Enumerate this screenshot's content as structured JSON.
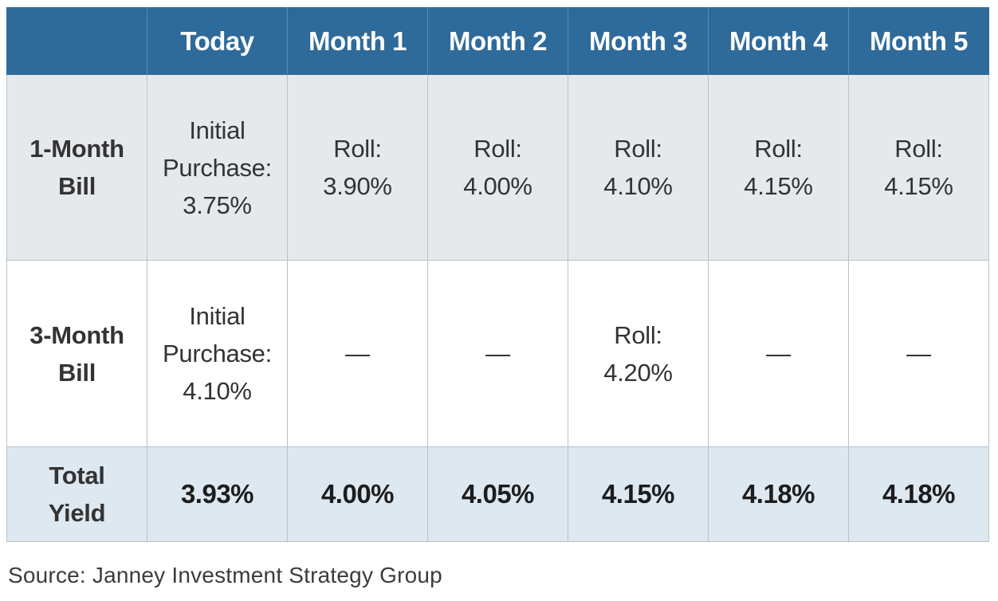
{
  "table": {
    "headers": [
      "",
      "Today",
      "Month 1",
      "Month 2",
      "Month 3",
      "Month 4",
      "Month 5"
    ],
    "rows": [
      {
        "label": "1-Month\nBill",
        "cells": [
          "Initial\nPurchase:\n3.75%",
          "Roll:\n3.90%",
          "Roll:\n4.00%",
          "Roll:\n4.10%",
          "Roll:\n4.15%",
          "Roll:\n4.15%"
        ]
      },
      {
        "label": "3-Month\nBill",
        "cells": [
          "Initial\nPurchase:\n4.10%",
          "—",
          "—",
          "Roll:\n4.20%",
          "—",
          "—"
        ]
      }
    ],
    "total": {
      "label": "Total\nYield",
      "values": [
        "3.93%",
        "4.00%",
        "4.05%",
        "4.15%",
        "4.18%",
        "4.18%"
      ]
    }
  },
  "source": "Source: Janney Investment Strategy Group",
  "colors": {
    "header_bg": "#2e6a9a",
    "row1_bg": "#e6e9ec",
    "row2_bg": "#ffffff",
    "total_bg": "#dde8f1"
  }
}
